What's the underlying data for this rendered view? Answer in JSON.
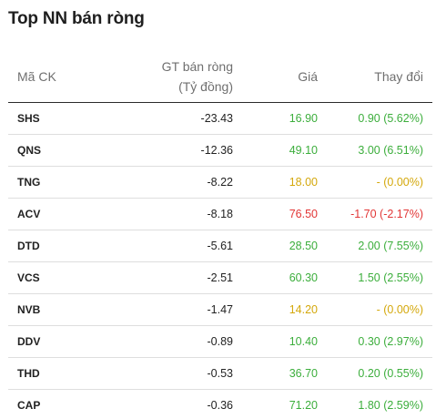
{
  "title": "Top NN bán ròng",
  "headers": {
    "code": "Mã CK",
    "gt_line1": "GT bán ròng",
    "gt_line2": "(Tỷ đồng)",
    "price": "Giá",
    "change": "Thay đổi"
  },
  "colors": {
    "up": "#3cae3c",
    "reference": "#d4a80c",
    "down": "#e23636"
  },
  "rows": [
    {
      "code": "SHS",
      "net_sell": "-23.43",
      "price": "16.90",
      "change": "0.90 (5.62%)",
      "status": "up"
    },
    {
      "code": "QNS",
      "net_sell": "-12.36",
      "price": "49.10",
      "change": "3.00 (6.51%)",
      "status": "up"
    },
    {
      "code": "TNG",
      "net_sell": "-8.22",
      "price": "18.00",
      "change": "- (0.00%)",
      "status": "ref"
    },
    {
      "code": "ACV",
      "net_sell": "-8.18",
      "price": "76.50",
      "change": "-1.70 (-2.17%)",
      "status": "down"
    },
    {
      "code": "DTD",
      "net_sell": "-5.61",
      "price": "28.50",
      "change": "2.00 (7.55%)",
      "status": "up"
    },
    {
      "code": "VCS",
      "net_sell": "-2.51",
      "price": "60.30",
      "change": "1.50 (2.55%)",
      "status": "up"
    },
    {
      "code": "NVB",
      "net_sell": "-1.47",
      "price": "14.20",
      "change": "- (0.00%)",
      "status": "ref"
    },
    {
      "code": "DDV",
      "net_sell": "-0.89",
      "price": "10.40",
      "change": "0.30 (2.97%)",
      "status": "up"
    },
    {
      "code": "THD",
      "net_sell": "-0.53",
      "price": "36.70",
      "change": "0.20 (0.55%)",
      "status": "up"
    },
    {
      "code": "CAP",
      "net_sell": "-0.36",
      "price": "71.20",
      "change": "1.80 (2.59%)",
      "status": "up"
    }
  ]
}
